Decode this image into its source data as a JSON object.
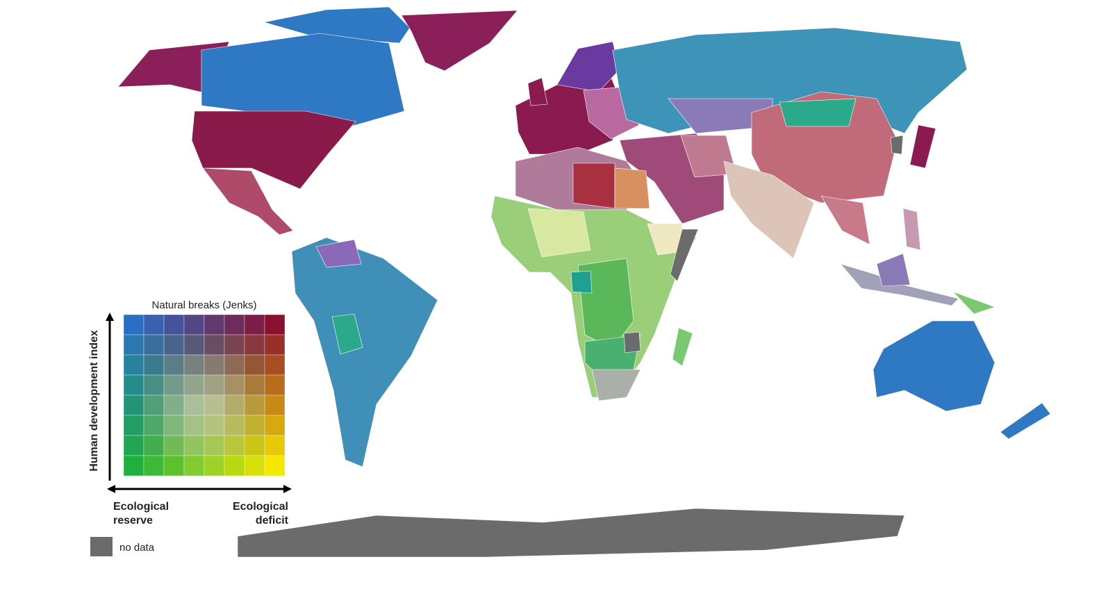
{
  "legend": {
    "title": "Natural breaks (Jenks)",
    "y_axis_label": "Human development index",
    "x_axis_left_label": "Ecological reserve",
    "x_axis_right_label": "Ecological deficit",
    "no_data_label": "no data"
  }
}
